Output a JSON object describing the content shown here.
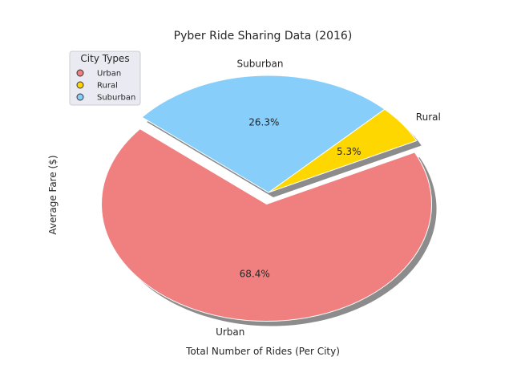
{
  "chart_data": {
    "type": "pie",
    "title": "Pyber Ride Sharing Data (2016)",
    "xlabel": "Total Number of Rides (Per City)",
    "ylabel": "Average Fare ($)",
    "slices": [
      {
        "label": "Urban",
        "value": 68.4,
        "pct_text": "68.4%",
        "color": "#F08080",
        "explode": true
      },
      {
        "label": "Rural",
        "value": 5.3,
        "pct_text": "5.3%",
        "color": "#FFD700",
        "explode": false
      },
      {
        "label": "Suburban",
        "value": 26.3,
        "pct_text": "26.3%",
        "color": "#87CEFA",
        "explode": false
      }
    ],
    "shadow": true,
    "legend": {
      "title": "City Types",
      "placement": "upper-left",
      "entries": [
        {
          "label": "Urban",
          "color": "#F08080"
        },
        {
          "label": "Rural",
          "color": "#FFD700"
        },
        {
          "label": "Suburban",
          "color": "#87CEFA"
        }
      ]
    }
  }
}
